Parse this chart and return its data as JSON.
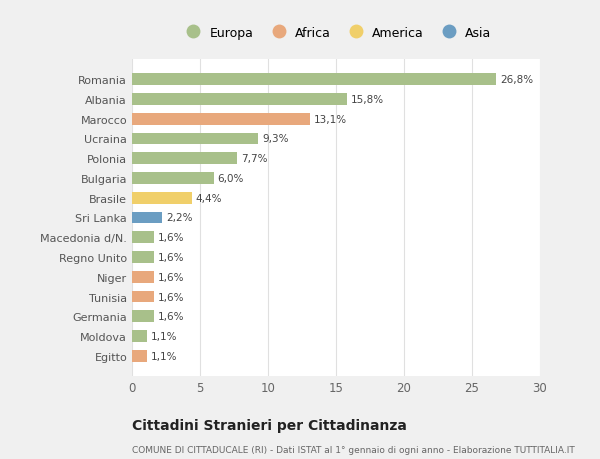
{
  "countries": [
    "Romania",
    "Albania",
    "Marocco",
    "Ucraina",
    "Polonia",
    "Bulgaria",
    "Brasile",
    "Sri Lanka",
    "Macedonia d/N.",
    "Regno Unito",
    "Niger",
    "Tunisia",
    "Germania",
    "Moldova",
    "Egitto"
  ],
  "values": [
    26.8,
    15.8,
    13.1,
    9.3,
    7.7,
    6.0,
    4.4,
    2.2,
    1.6,
    1.6,
    1.6,
    1.6,
    1.6,
    1.1,
    1.1
  ],
  "labels": [
    "26,8%",
    "15,8%",
    "13,1%",
    "9,3%",
    "7,7%",
    "6,0%",
    "4,4%",
    "2,2%",
    "1,6%",
    "1,6%",
    "1,6%",
    "1,6%",
    "1,6%",
    "1,1%",
    "1,1%"
  ],
  "continents": [
    "Europa",
    "Europa",
    "Africa",
    "Europa",
    "Europa",
    "Europa",
    "America",
    "Asia",
    "Europa",
    "Europa",
    "Africa",
    "Africa",
    "Europa",
    "Europa",
    "Africa"
  ],
  "colors": {
    "Europa": "#a8c08a",
    "Africa": "#e8a87c",
    "America": "#f0cf6a",
    "Asia": "#6b9dc2"
  },
  "legend_order": [
    "Europa",
    "Africa",
    "America",
    "Asia"
  ],
  "title": "Cittadini Stranieri per Cittadinanza",
  "subtitle": "COMUNE DI CITTADUCALE (RI) - Dati ISTAT al 1° gennaio di ogni anno - Elaborazione TUTTITALIA.IT",
  "xlim": [
    0,
    30
  ],
  "xticks": [
    0,
    5,
    10,
    15,
    20,
    25,
    30
  ],
  "background_color": "#f0f0f0",
  "plot_background": "#ffffff",
  "grid_color": "#e0e0e0"
}
